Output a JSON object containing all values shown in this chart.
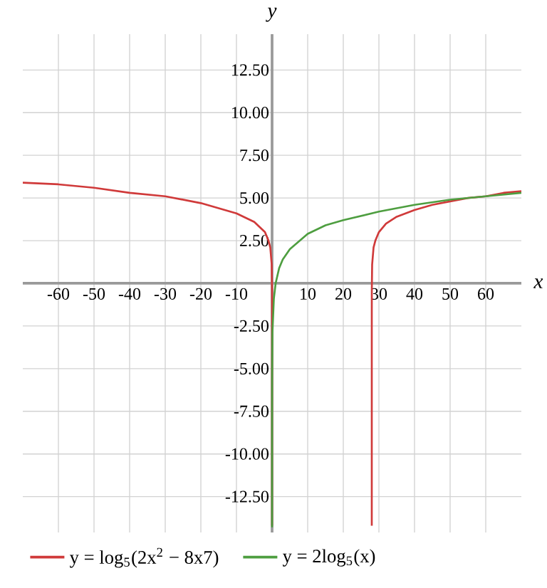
{
  "chart_data": {
    "type": "line",
    "xlabel": "x",
    "ylabel": "y",
    "xlim": [
      -70,
      70
    ],
    "ylim": [
      -14.6,
      14.6
    ],
    "xticks": [
      -60,
      -50,
      -40,
      -30,
      -20,
      -10,
      {
        "value": 0,
        "label": null
      },
      10,
      20,
      30,
      40,
      50,
      60
    ],
    "yticks": [
      {
        "value": -12.5,
        "label": "-12.50"
      },
      {
        "value": -10,
        "label": "-10.00"
      },
      {
        "value": -7.5,
        "label": "-7.50"
      },
      {
        "value": -5,
        "label": "-5.00"
      },
      {
        "value": -2.5,
        "label": "-2.50"
      },
      {
        "value": 0,
        "label": null
      },
      {
        "value": 2.5,
        "label": "2.50"
      },
      {
        "value": 5,
        "label": "5.00"
      },
      {
        "value": 7.5,
        "label": "7.50"
      },
      {
        "value": 10,
        "label": "10.00"
      },
      {
        "value": 12.5,
        "label": "12.50"
      }
    ],
    "grid": true,
    "legend": "bottom left",
    "marker": "none",
    "series": [
      {
        "name": "y = log$_{5}$(2x$^{2}$ − 8x7)",
        "color": "#d03a3a",
        "x": [
          -70,
          -60,
          -50,
          -40,
          -30,
          -20,
          -10,
          -5,
          -2,
          -1,
          -0.5,
          -0.1,
          -0.01,
          -0.001,
          -2e-12,
          14,
          28.000000000002,
          28.001,
          28.01,
          28.1,
          28.5,
          29,
          30,
          32,
          35,
          40,
          45,
          50,
          55,
          60,
          65,
          70
        ],
        "values": [
          5.9,
          5.8,
          5.6,
          5.3,
          5.1,
          4.7,
          4.1,
          3.6,
          3.0,
          2.5,
          2.1,
          1.1,
          -0.4,
          -1.8,
          -14.2,
          null,
          -14.2,
          -1.8,
          -0.4,
          1.1,
          2.1,
          2.5,
          3.0,
          3.5,
          3.9,
          4.3,
          4.6,
          4.8,
          5.0,
          5.1,
          5.3,
          5.4
        ]
      },
      {
        "name": "y = 2log$_{5}$(x)",
        "color": "#4e9e40",
        "x": [
          1e-05,
          2e-05,
          0.001,
          0.01,
          0.1,
          0.5,
          1,
          2,
          3,
          5,
          10,
          15,
          20,
          30,
          40,
          50,
          60,
          70
        ],
        "values": [
          -14.3,
          -13.5,
          -8.6,
          -5.7,
          -2.9,
          -0.9,
          0,
          0.9,
          1.4,
          2.0,
          2.9,
          3.4,
          3.7,
          4.2,
          4.6,
          4.9,
          5.1,
          5.3
        ]
      }
    ]
  }
}
